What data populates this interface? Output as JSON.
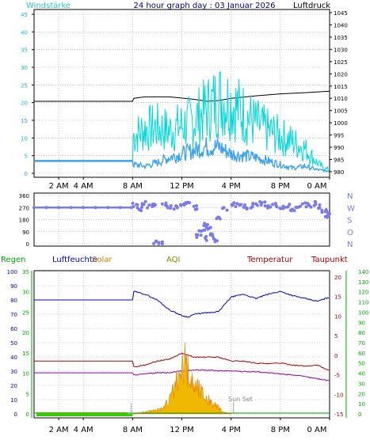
{
  "chart_data": [
    {
      "type": "line",
      "title": "24 hour graph day : 03 Januar 2026",
      "left_axis_label": "Windstärke",
      "right_axis_label": "Luftdruck",
      "y_left": {
        "min": 0,
        "max": 45,
        "ticks": [
          0,
          5,
          10,
          15,
          20,
          25,
          30,
          35,
          40,
          45
        ]
      },
      "y_right": {
        "min": 980,
        "max": 1045,
        "ticks": [
          980,
          985,
          990,
          995,
          1000,
          1005,
          1010,
          1015,
          1020,
          1025,
          1030,
          1035,
          1040,
          1045
        ]
      },
      "x": {
        "min": 0,
        "max": 24,
        "unit": "hours",
        "tick_labels": [
          "2 AM",
          "4 AM",
          "8 AM",
          "12 PM",
          "4 PM",
          "8 PM",
          "0 AM"
        ],
        "tick_hours": [
          2,
          4,
          8,
          12,
          16,
          20,
          24
        ]
      },
      "colors": {
        "gust": "#00d8d8",
        "wind": "#3aa0f0",
        "pressure": "#000000",
        "grid": "#999999"
      },
      "series": [
        {
          "axis": "right",
          "color": "pressure",
          "x": [
            0,
            8,
            8.1,
            9,
            11,
            13,
            14,
            15,
            16,
            18,
            20,
            22,
            24
          ],
          "values": [
            1008.8,
            1008.8,
            1010.0,
            1010.6,
            1010.6,
            1009.6,
            1008.8,
            1009.1,
            1010.0,
            1011.0,
            1011.8,
            1012.3,
            1012.9
          ]
        },
        {
          "axis": "left",
          "color": "gust",
          "x": [
            0,
            8,
            8.05,
            9,
            10,
            11,
            12,
            13,
            14,
            15,
            16,
            17,
            18,
            19,
            20,
            21,
            22,
            22.5,
            23,
            23.5,
            24
          ],
          "values": [
            3.5,
            3.5,
            10.5,
            12.5,
            13,
            12,
            13.5,
            15,
            18,
            21,
            20,
            17,
            14,
            12,
            10.5,
            9,
            7,
            5,
            3,
            1.5,
            1
          ]
        },
        {
          "axis": "left",
          "color": "wind",
          "x": [
            0,
            8,
            8.05,
            9,
            10,
            11,
            12,
            13,
            14,
            15,
            16,
            17,
            18,
            19,
            20,
            21,
            22,
            22.5,
            23,
            23.5,
            24
          ],
          "values": [
            3.5,
            3.5,
            2.5,
            2,
            3,
            4.5,
            5.5,
            6.5,
            7.5,
            7.5,
            5.5,
            5,
            4.5,
            3.5,
            2.5,
            1.5,
            2,
            1.5,
            1,
            0.8,
            0.5
          ]
        }
      ]
    },
    {
      "type": "scatter",
      "y": {
        "min": 0,
        "max": 360,
        "ticks": [
          0,
          90,
          180,
          270,
          360
        ]
      },
      "compass_labels": [
        "N",
        "W",
        "S",
        "O",
        "N"
      ],
      "colors": {
        "points": "#7a7ae8"
      },
      "x": [
        0,
        1,
        2,
        3,
        4,
        5,
        6,
        7,
        7.9,
        8.2,
        8.6,
        9,
        9.4,
        9.8,
        10.5,
        11,
        11.5,
        12,
        12.5,
        13,
        13.4,
        13.6,
        13.8,
        14,
        14.2,
        14.5,
        14.8,
        15,
        15.5,
        16,
        16.5,
        17,
        17.5,
        18,
        18.5,
        19,
        19.5,
        20,
        20.5,
        21,
        21.5,
        22,
        22.5,
        23,
        23.3,
        23.6,
        23.8,
        24,
        9.8,
        10.3
      ],
      "values": [
        270,
        270,
        270,
        270,
        270,
        270,
        270,
        270,
        270,
        290,
        260,
        300,
        280,
        290,
        300,
        280,
        270,
        290,
        300,
        270,
        60,
        100,
        40,
        150,
        120,
        70,
        30,
        200,
        260,
        300,
        290,
        280,
        270,
        290,
        300,
        280,
        290,
        270,
        280,
        260,
        270,
        290,
        280,
        300,
        260,
        240,
        200,
        220,
        5,
        5
      ]
    },
    {
      "type": "line",
      "labels": {
        "regen": "Regen",
        "luftfeuchte": "Luftfeuchte",
        "solar": "Solar",
        "aqi": "AQI",
        "temperatur": "Temperatur",
        "taupunkt": "Taupunkt"
      },
      "annotation": "Sun Set",
      "y_humidity": {
        "min": 0,
        "max": 100,
        "ticks": [
          0,
          10,
          20,
          30,
          40,
          50,
          60,
          70,
          80,
          90,
          100
        ]
      },
      "y_rain": {
        "min": 0,
        "max": 35,
        "ticks": [
          0,
          5,
          10,
          15,
          20,
          25,
          30,
          35
        ]
      },
      "y_temp": {
        "min": -15,
        "max": 20,
        "ticks": [
          -15,
          -10,
          -5,
          0,
          5,
          10,
          15,
          20
        ]
      },
      "y_solar": {
        "min": 0,
        "max": 140,
        "ticks": [
          0,
          10,
          20,
          30,
          40,
          50,
          60,
          70,
          80,
          90,
          100,
          110,
          120,
          130,
          140
        ]
      },
      "colors": {
        "regen": "#00aa00",
        "luftfeuchte": "#0000cc",
        "solar": "#e8a000",
        "aqi": "#888800",
        "temperatur": "#aa0000",
        "taupunkt": "#8800aa",
        "rain_bars": "#33cc00"
      },
      "series": [
        {
          "name": "Luftfeuchte",
          "axis": "humidity",
          "x": [
            0,
            8,
            8.1,
            9,
            10,
            11,
            12,
            12.5,
            13,
            14,
            14.5,
            15,
            16,
            17,
            18,
            19,
            20,
            21,
            22,
            23,
            24
          ],
          "values": [
            80,
            80,
            86,
            84,
            80,
            73,
            69,
            68,
            70,
            71,
            71,
            72,
            82,
            84,
            81,
            84,
            86,
            83,
            81,
            79,
            82
          ]
        },
        {
          "name": "Temperatur",
          "axis": "temp",
          "x": [
            0,
            8,
            8.1,
            9,
            10,
            11,
            12,
            13,
            14,
            15,
            16,
            17,
            18,
            19,
            20,
            21,
            22,
            23,
            24
          ],
          "values": [
            -1.5,
            -1.5,
            -3.0,
            -2.5,
            -1.5,
            -1.0,
            0.5,
            -0.5,
            -0.5,
            -0.5,
            -1.5,
            -1.5,
            -2.0,
            -2.2,
            -2.0,
            -2.5,
            -2.8,
            -2.5,
            -4.0
          ]
        },
        {
          "name": "Taupunkt",
          "axis": "temp",
          "x": [
            0,
            8,
            8.1,
            9,
            10,
            11,
            12,
            13,
            14,
            15,
            16,
            17,
            18,
            19,
            20,
            21,
            22,
            23,
            24
          ],
          "values": [
            -4.5,
            -4.5,
            -5.0,
            -4.8,
            -4.5,
            -4.5,
            -4.0,
            -3.8,
            -3.8,
            -4.0,
            -4.0,
            -4.2,
            -4.2,
            -4.5,
            -4.8,
            -5.0,
            -5.5,
            -6.0,
            -6.5
          ]
        },
        {
          "name": "Solar",
          "axis": "solar",
          "x": [
            0,
            8,
            9,
            10,
            10.5,
            11,
            11.5,
            12,
            12.3,
            12.6,
            13,
            13.5,
            14,
            14.5,
            15,
            15.3,
            16,
            24
          ],
          "values": [
            0,
            0,
            2,
            4,
            6,
            14,
            28,
            40,
            52,
            36,
            30,
            24,
            16,
            10,
            6,
            2,
            0,
            0
          ]
        },
        {
          "name": "Regen",
          "axis": "rain",
          "x": [
            0,
            24
          ],
          "values": [
            0.2,
            0.2
          ]
        }
      ]
    }
  ]
}
